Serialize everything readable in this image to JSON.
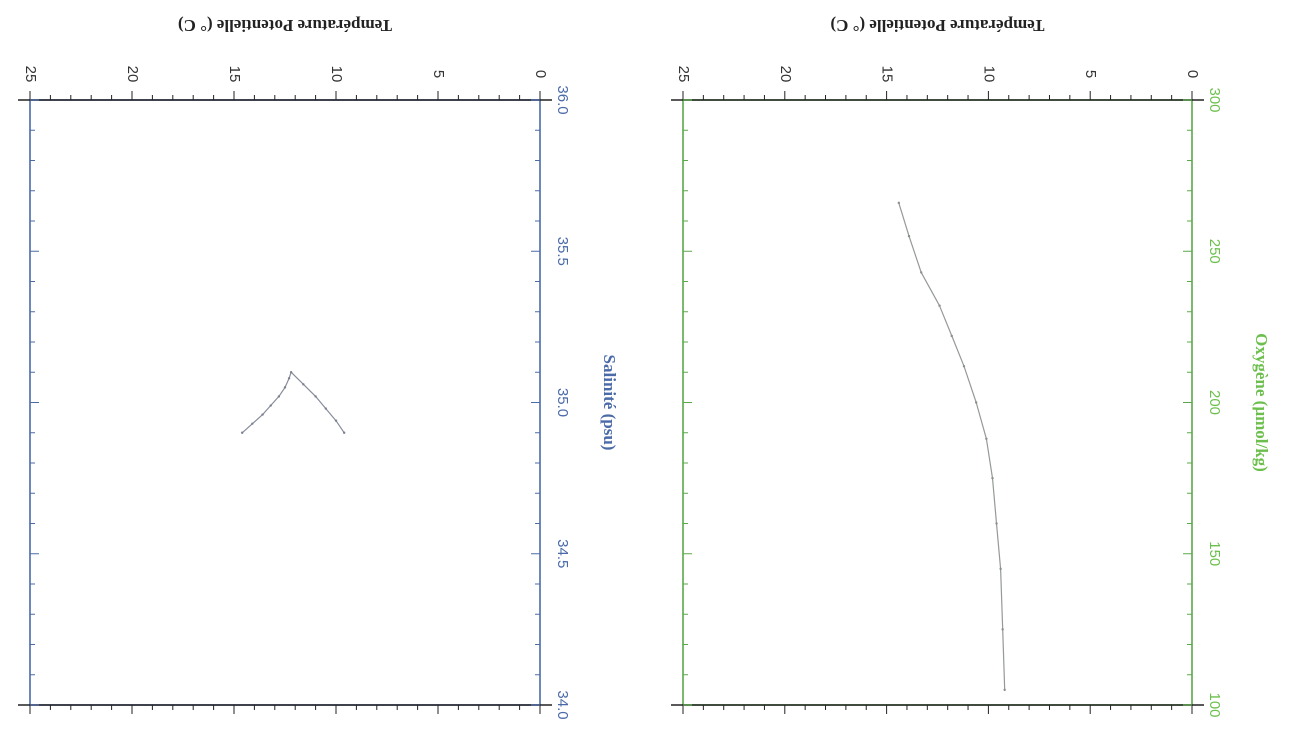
{
  "chart_data": [
    {
      "type": "line",
      "orientation": "rotated 90° clockwise",
      "xlabel": "Salinité (psu)",
      "ylabel": "Température Potentielle (° C)",
      "xlim": [
        34.0,
        36.0
      ],
      "ylim": [
        0,
        25
      ],
      "x_ticks": [
        "34.0",
        "34.5",
        "35.0",
        "35.5",
        "36.0"
      ],
      "y_ticks": [
        "0",
        "5",
        "10",
        "15",
        "20",
        "25"
      ],
      "grid": false,
      "axis_color": "#4a6aa8",
      "label_color": "#4a6aa8",
      "series": [
        {
          "color": "#7a8090",
          "x": [
            34.9,
            34.93,
            34.96,
            34.99,
            35.02,
            35.05,
            35.08,
            35.1,
            35.06,
            35.02,
            34.98,
            34.94,
            34.9
          ],
          "y": [
            14.6,
            14.1,
            13.6,
            13.2,
            12.8,
            12.5,
            12.3,
            12.2,
            11.6,
            11.0,
            10.5,
            10.0,
            9.6
          ]
        }
      ]
    },
    {
      "type": "line",
      "orientation": "rotated 90° clockwise",
      "xlabel": "Oxygène (µmol/kg)",
      "ylabel": "Température Potentielle (° C)",
      "xlim": [
        100,
        300
      ],
      "ylim": [
        0,
        25
      ],
      "x_ticks": [
        "100",
        "150",
        "200",
        "250",
        "300"
      ],
      "y_ticks": [
        "0",
        "5",
        "10",
        "15",
        "20",
        "25"
      ],
      "grid": false,
      "axis_color": "#5aa84a",
      "label_color": "#6cbf4c",
      "series": [
        {
          "color": "#8a8f8a",
          "x": [
            105,
            125,
            145,
            160,
            175,
            188,
            200,
            212,
            222,
            232,
            243,
            255,
            266
          ],
          "y": [
            9.2,
            9.3,
            9.4,
            9.6,
            9.8,
            10.1,
            10.6,
            11.2,
            11.8,
            12.4,
            13.3,
            13.9,
            14.4
          ]
        }
      ]
    }
  ]
}
